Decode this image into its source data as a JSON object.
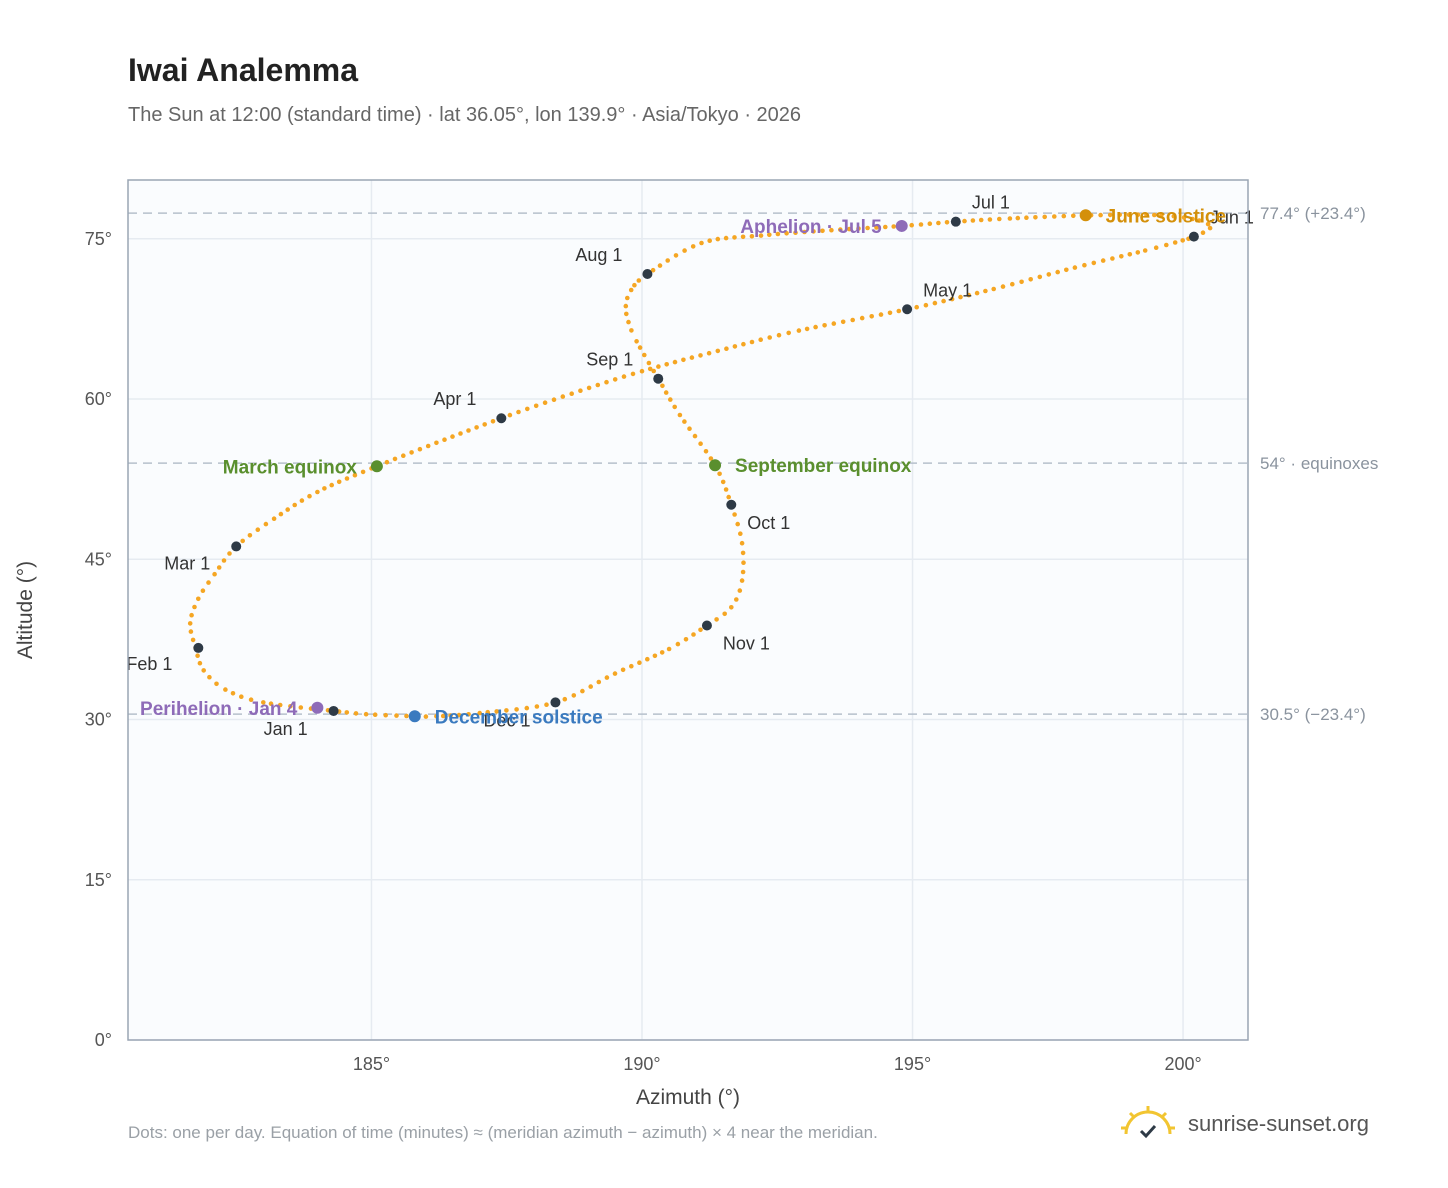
{
  "chart_data": {
    "type": "scatter",
    "title": "Iwai Analemma",
    "subtitle": "The Sun at 12:00 (standard time) · lat 36.05°, lon 139.9° · Asia/Tokyo · 2026",
    "xlabel": "Azimuth (°)",
    "ylabel": "Altitude (°)",
    "xlim": [
      180.5,
      201.2
    ],
    "ylim": [
      0,
      80.5
    ],
    "xticks": [
      185,
      190,
      195,
      200
    ],
    "xtick_labels": [
      "185°",
      "190°",
      "195°",
      "200°"
    ],
    "yticks": [
      0,
      15,
      30,
      45,
      60,
      75
    ],
    "ytick_labels": [
      "0°",
      "15°",
      "30°",
      "45°",
      "60°",
      "75°"
    ],
    "grid": true,
    "curve_color": "#f5a623",
    "reference_lines": [
      {
        "y": 77.4,
        "label": "77.4° (+23.4°)"
      },
      {
        "y": 54,
        "label": "54° · equinoxes"
      },
      {
        "y": 30.5,
        "label": "30.5° (−23.4°)"
      }
    ],
    "series": [
      {
        "marker": "one dot per day",
        "points": [
          [
            184.3,
            30.8
          ],
          [
            183.0,
            31.6
          ],
          [
            182.3,
            32.8
          ],
          [
            181.9,
            34.6
          ],
          [
            181.75,
            36.7
          ],
          [
            181.65,
            39.0
          ],
          [
            181.8,
            41.3
          ],
          [
            182.1,
            43.6
          ],
          [
            182.5,
            46.2
          ],
          [
            183.2,
            48.8
          ],
          [
            184.0,
            51.3
          ],
          [
            185.0,
            53.5
          ],
          [
            186.2,
            55.9
          ],
          [
            187.4,
            58.2
          ],
          [
            188.7,
            60.5
          ],
          [
            190.0,
            62.6
          ],
          [
            191.4,
            64.5
          ],
          [
            192.9,
            66.4
          ],
          [
            194.9,
            68.4
          ],
          [
            196.5,
            70.3
          ],
          [
            198.0,
            72.3
          ],
          [
            199.3,
            73.9
          ],
          [
            200.1,
            75.0
          ],
          [
            200.2,
            75.2
          ],
          [
            200.5,
            76.0
          ],
          [
            200.3,
            76.7
          ],
          [
            199.6,
            77.2
          ],
          [
            198.3,
            77.2
          ],
          [
            196.8,
            76.9
          ],
          [
            195.8,
            76.6
          ],
          [
            194.8,
            76.2
          ],
          [
            193.5,
            75.8
          ],
          [
            192.2,
            75.3
          ],
          [
            191.1,
            74.6
          ],
          [
            190.1,
            71.7
          ],
          [
            189.8,
            70.2
          ],
          [
            189.7,
            68.7
          ],
          [
            189.75,
            67.2
          ],
          [
            189.9,
            65.4
          ],
          [
            190.3,
            61.9
          ],
          [
            190.7,
            58.5
          ],
          [
            191.35,
            53.8
          ],
          [
            191.65,
            50.1
          ],
          [
            191.85,
            46.5
          ],
          [
            191.85,
            43.0
          ],
          [
            191.65,
            40.5
          ],
          [
            191.2,
            38.8
          ],
          [
            190.5,
            36.6
          ],
          [
            189.5,
            34.3
          ],
          [
            188.4,
            31.6
          ],
          [
            187.0,
            30.6
          ],
          [
            186.2,
            30.3
          ],
          [
            185.8,
            30.3
          ],
          [
            184.9,
            30.5
          ],
          [
            184.3,
            30.8
          ]
        ]
      }
    ],
    "month_markers": [
      {
        "label": "Jan 1",
        "x": 184.3,
        "y": 30.8,
        "dx": -70,
        "dy": 24
      },
      {
        "label": "Feb 1",
        "x": 181.8,
        "y": 36.7,
        "dx": -72,
        "dy": 22
      },
      {
        "label": "Mar 1",
        "x": 182.5,
        "y": 46.2,
        "dx": -72,
        "dy": 23
      },
      {
        "label": "Apr 1",
        "x": 187.4,
        "y": 58.2,
        "dx": -68,
        "dy": -13
      },
      {
        "label": "May 1",
        "x": 194.9,
        "y": 68.4,
        "dx": 16,
        "dy": -13
      },
      {
        "label": "Jun 1",
        "x": 200.2,
        "y": 75.2,
        "dx": 16,
        "dy": -13
      },
      {
        "label": "Jul 1",
        "x": 195.8,
        "y": 76.6,
        "dx": 16,
        "dy": -13
      },
      {
        "label": "Aug 1",
        "x": 190.1,
        "y": 71.7,
        "dx": -72,
        "dy": -13
      },
      {
        "label": "Sep 1",
        "x": 190.3,
        "y": 61.9,
        "dx": -72,
        "dy": -13
      },
      {
        "label": "Oct 1",
        "x": 191.65,
        "y": 50.1,
        "dx": 16,
        "dy": 24
      },
      {
        "label": "Nov 1",
        "x": 191.2,
        "y": 38.8,
        "dx": 16,
        "dy": 24
      },
      {
        "label": "Dec 1",
        "x": 188.4,
        "y": 31.6,
        "dx": -72,
        "dy": 24
      }
    ],
    "events": [
      {
        "label": "June solstice",
        "x": 198.2,
        "y": 77.2,
        "color": "#d4900a",
        "side": "right"
      },
      {
        "label": "Aphelion · Jul 5",
        "x": 194.8,
        "y": 76.2,
        "color": "#8e6bb8",
        "side": "left"
      },
      {
        "label": "March equinox",
        "x": 185.1,
        "y": 53.7,
        "color": "#5a8f2e",
        "side": "left"
      },
      {
        "label": "September equinox",
        "x": 191.35,
        "y": 53.8,
        "color": "#5a8f2e",
        "side": "right"
      },
      {
        "label": "December solstice",
        "x": 185.8,
        "y": 30.3,
        "color": "#3a7abf",
        "side": "right"
      },
      {
        "label": "Perihelion · Jan 4",
        "x": 184.0,
        "y": 31.1,
        "color": "#8e6bb8",
        "side": "left"
      }
    ]
  },
  "footnote": "Dots: one per day. Equation of time (minutes) ≈ (meridian azimuth − azimuth) × 4 near the meridian.",
  "brand": {
    "name": "sunrise-sunset.org",
    "icon": "sun-check-logo-icon",
    "color": "#f2c531"
  }
}
